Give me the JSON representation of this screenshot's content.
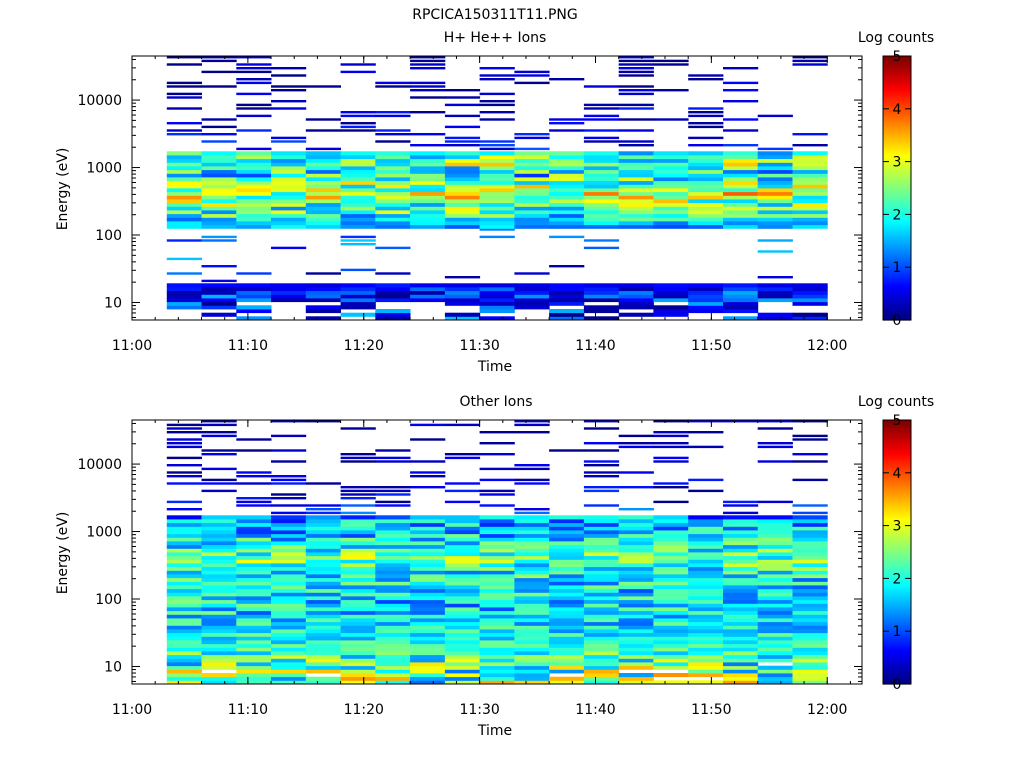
{
  "figure_title": "RPCICA150311T11.PNG",
  "chart_data": [
    {
      "type": "heatmap",
      "title": "H+ He++ Ions",
      "xlabel": "Time",
      "ylabel": "Energy (eV)",
      "colorbar_label": "Log counts",
      "colorbar_ticks": [
        "0",
        "1",
        "2",
        "3",
        "4",
        "5"
      ],
      "colorbar_range": [
        0,
        5
      ],
      "colormap": "jet",
      "x_range": [
        "11:00",
        "12:03"
      ],
      "x_ticks": [
        "11:00",
        "11:10",
        "11:20",
        "11:30",
        "11:40",
        "11:50",
        "12:00"
      ],
      "y_scale": "log",
      "y_range": [
        5.5,
        45000
      ],
      "y_ticks": [
        "10",
        "100",
        "1000",
        "10000"
      ],
      "time_bins_start": [
        "11:03",
        "11:06",
        "11:09",
        "11:12",
        "11:15",
        "11:18",
        "11:21",
        "11:24",
        "11:27",
        "11:30",
        "11:33",
        "11:36",
        "11:39",
        "11:42",
        "11:45",
        "11:48",
        "11:51",
        "11:54",
        "11:57"
      ],
      "profile": {
        "14": [
          0.8,
          0.5
        ],
        "18": [
          0.6,
          0.1
        ],
        "30": [
          0.7,
          0.5
        ],
        "150": [
          1.5,
          0.3
        ],
        "200": [
          2.0,
          0.6
        ],
        "300": [
          2.4,
          0.6
        ],
        "400": [
          2.9,
          0.7
        ],
        "600": [
          2.4,
          0.6
        ],
        "800": [
          1.9,
          0.7
        ],
        "1200": [
          2.4,
          0.7
        ],
        "1600": [
          2.1,
          0.5
        ],
        "1800": [
          0.6,
          0.3
        ],
        "2500": [
          0.5,
          0.3
        ],
        "5000": [
          0.3,
          0.3
        ],
        "10000": [
          0.3,
          0.3
        ],
        "30000": [
          0.2,
          0.25
        ]
      },
      "floor": 10,
      "ceiling": 1800
    },
    {
      "type": "heatmap",
      "title": "Other Ions",
      "xlabel": "Time",
      "ylabel": "Energy (eV)",
      "colorbar_label": "Log counts",
      "colorbar_ticks": [
        "0",
        "1",
        "2",
        "3",
        "4",
        "5"
      ],
      "colorbar_range": [
        0,
        5
      ],
      "colormap": "jet",
      "x_range": [
        "11:00",
        "12:03"
      ],
      "x_ticks": [
        "11:00",
        "11:10",
        "11:20",
        "11:30",
        "11:40",
        "11:50",
        "12:00"
      ],
      "y_scale": "log",
      "y_range": [
        5.5,
        45000
      ],
      "y_ticks": [
        "10",
        "100",
        "1000",
        "10000"
      ],
      "time_bins_start": [
        "11:03",
        "11:06",
        "11:09",
        "11:12",
        "11:15",
        "11:18",
        "11:21",
        "11:24",
        "11:27",
        "11:30",
        "11:33",
        "11:36",
        "11:39",
        "11:42",
        "11:45",
        "11:48",
        "11:51",
        "11:54",
        "11:57"
      ],
      "profile": {
        "8": [
          2.4,
          0.8
        ],
        "13": [
          2.2,
          0.6
        ],
        "20": [
          2.0,
          0.3
        ],
        "40": [
          1.8,
          0.4
        ],
        "80": [
          1.7,
          0.5
        ],
        "150": [
          1.8,
          0.5
        ],
        "300": [
          2.0,
          0.5
        ],
        "400": [
          2.4,
          0.5
        ],
        "600": [
          2.0,
          0.5
        ],
        "1000": [
          1.6,
          0.5
        ],
        "1600": [
          1.4,
          0.5
        ],
        "2500": [
          0.5,
          0.3
        ],
        "10000": [
          0.3,
          0.25
        ],
        "25000": [
          0.2,
          0.25
        ]
      },
      "floor": 6,
      "ceiling": 1800
    }
  ]
}
